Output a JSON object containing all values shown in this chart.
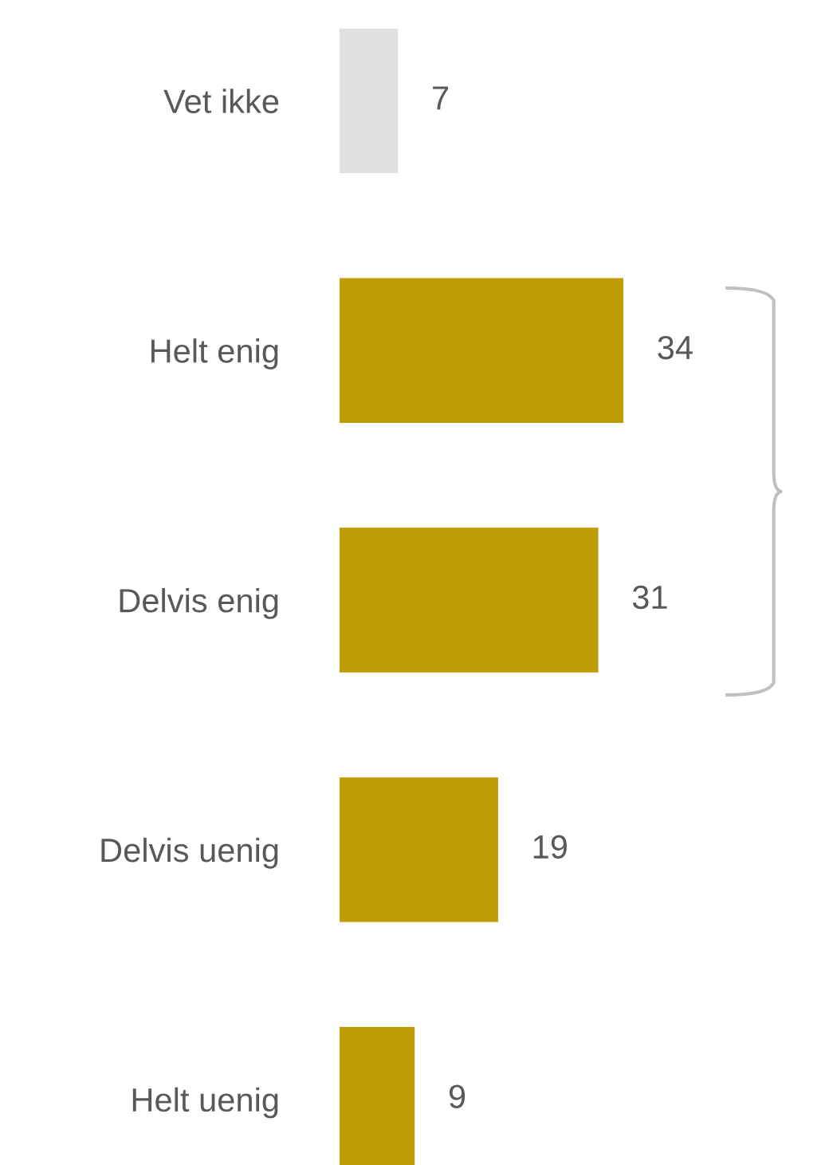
{
  "chart_data": {
    "type": "bar",
    "orientation": "horizontal",
    "categories": [
      "Vet ikke",
      "Helt enig",
      "Delvis enig",
      "Delvis uenig",
      "Helt uenig"
    ],
    "values": [
      7,
      34,
      31,
      19,
      9
    ],
    "colors": [
      "#e0e0e0",
      "#bf9b06",
      "#bf9b06",
      "#bf9b06",
      "#bf9b06"
    ],
    "data_labels": true,
    "grid": false,
    "legend": false
  }
}
